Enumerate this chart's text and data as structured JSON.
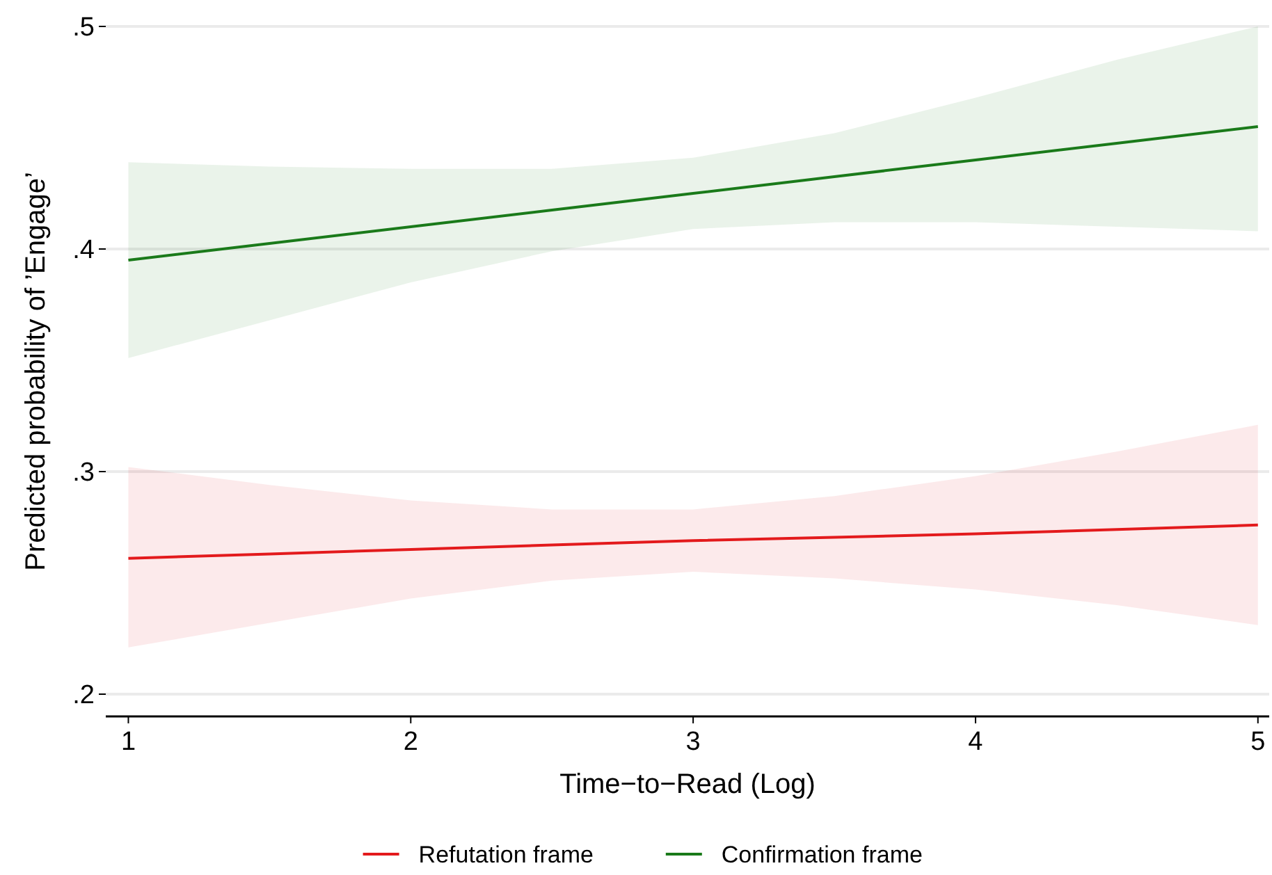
{
  "chart_data": {
    "type": "line",
    "xlabel": "Time−to−Read (Log)",
    "ylabel": "Predicted probability of ’Engage’",
    "x": [
      1,
      1.5,
      2,
      2.5,
      3,
      3.5,
      4,
      4.5,
      5
    ],
    "series": [
      {
        "name": "Refutation frame",
        "color": "#e31a1c",
        "values": [
          0.261,
          0.263,
          0.265,
          0.267,
          0.269,
          0.2705,
          0.272,
          0.274,
          0.276
        ],
        "lower": [
          0.221,
          0.232,
          0.243,
          0.251,
          0.255,
          0.252,
          0.247,
          0.24,
          0.231
        ],
        "upper": [
          0.302,
          0.294,
          0.287,
          0.283,
          0.283,
          0.289,
          0.298,
          0.309,
          0.321
        ]
      },
      {
        "name": "Confirmation frame",
        "color": "#1a7a1a",
        "values": [
          0.395,
          0.4025,
          0.41,
          0.4175,
          0.425,
          0.4325,
          0.44,
          0.4475,
          0.455
        ],
        "lower": [
          0.351,
          0.368,
          0.385,
          0.399,
          0.409,
          0.412,
          0.412,
          0.41,
          0.408
        ],
        "upper": [
          0.439,
          0.437,
          0.436,
          0.436,
          0.441,
          0.452,
          0.468,
          0.485,
          0.5
        ]
      }
    ],
    "xlim": [
      0.92,
      5.04
    ],
    "ylim": [
      0.19,
      0.5
    ],
    "xticks": [
      1,
      2,
      3,
      4,
      5
    ],
    "yticks": [
      {
        "value": 0.2,
        "label": ".2"
      },
      {
        "value": 0.3,
        "label": ".3"
      },
      {
        "value": 0.4,
        "label": ".4"
      },
      {
        "value": 0.5,
        "label": ".5"
      }
    ],
    "grid": "y",
    "legend": "bottom",
    "marker": "none",
    "line_style": "solid"
  }
}
